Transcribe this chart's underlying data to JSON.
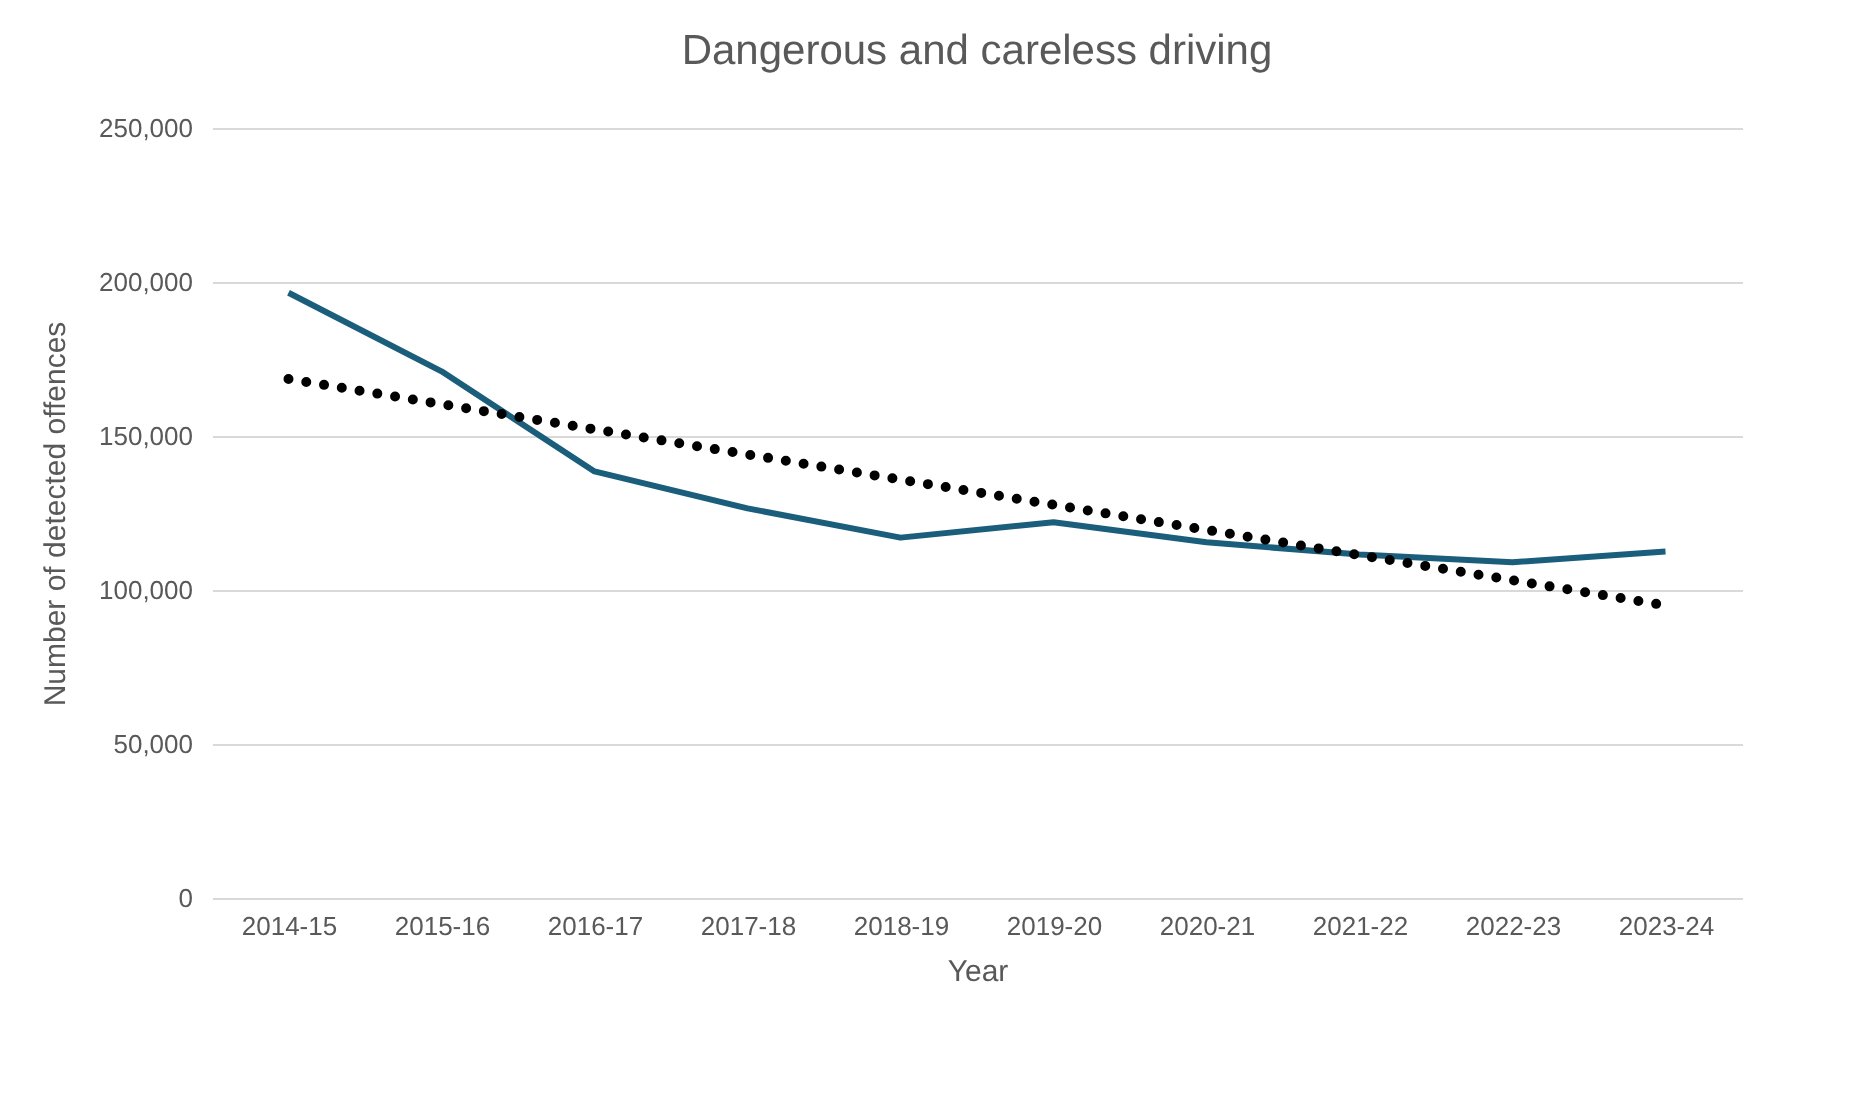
{
  "chart_data": {
    "type": "line",
    "title": "Dangerous and careless driving",
    "xlabel": "Year",
    "ylabel": "Number of detected offences",
    "categories": [
      "2014-15",
      "2015-16",
      "2016-17",
      "2017-18",
      "2018-19",
      "2019-20",
      "2020-21",
      "2021-22",
      "2022-23",
      "2023-24"
    ],
    "ylim": [
      0,
      250000
    ],
    "yticks": [
      {
        "value": 0,
        "label": "0"
      },
      {
        "value": 50000,
        "label": "50,000"
      },
      {
        "value": 100000,
        "label": "100,000"
      },
      {
        "value": 150000,
        "label": "150,000"
      },
      {
        "value": 200000,
        "label": "200,000"
      },
      {
        "value": 250000,
        "label": "250,000"
      }
    ],
    "grid": "y",
    "line_style": "solid",
    "series": [
      {
        "color": "#1b5e7b",
        "values": [
          196500,
          171000,
          138500,
          126500,
          117000,
          122000,
          115500,
          111500,
          109000,
          112500
        ]
      },
      {
        "type": "line",
        "color": "#000000",
        "line_style": "dotted",
        "x": [
          "2014-15",
          "2023-24"
        ],
        "values": [
          168500,
          95000
        ]
      }
    ]
  }
}
